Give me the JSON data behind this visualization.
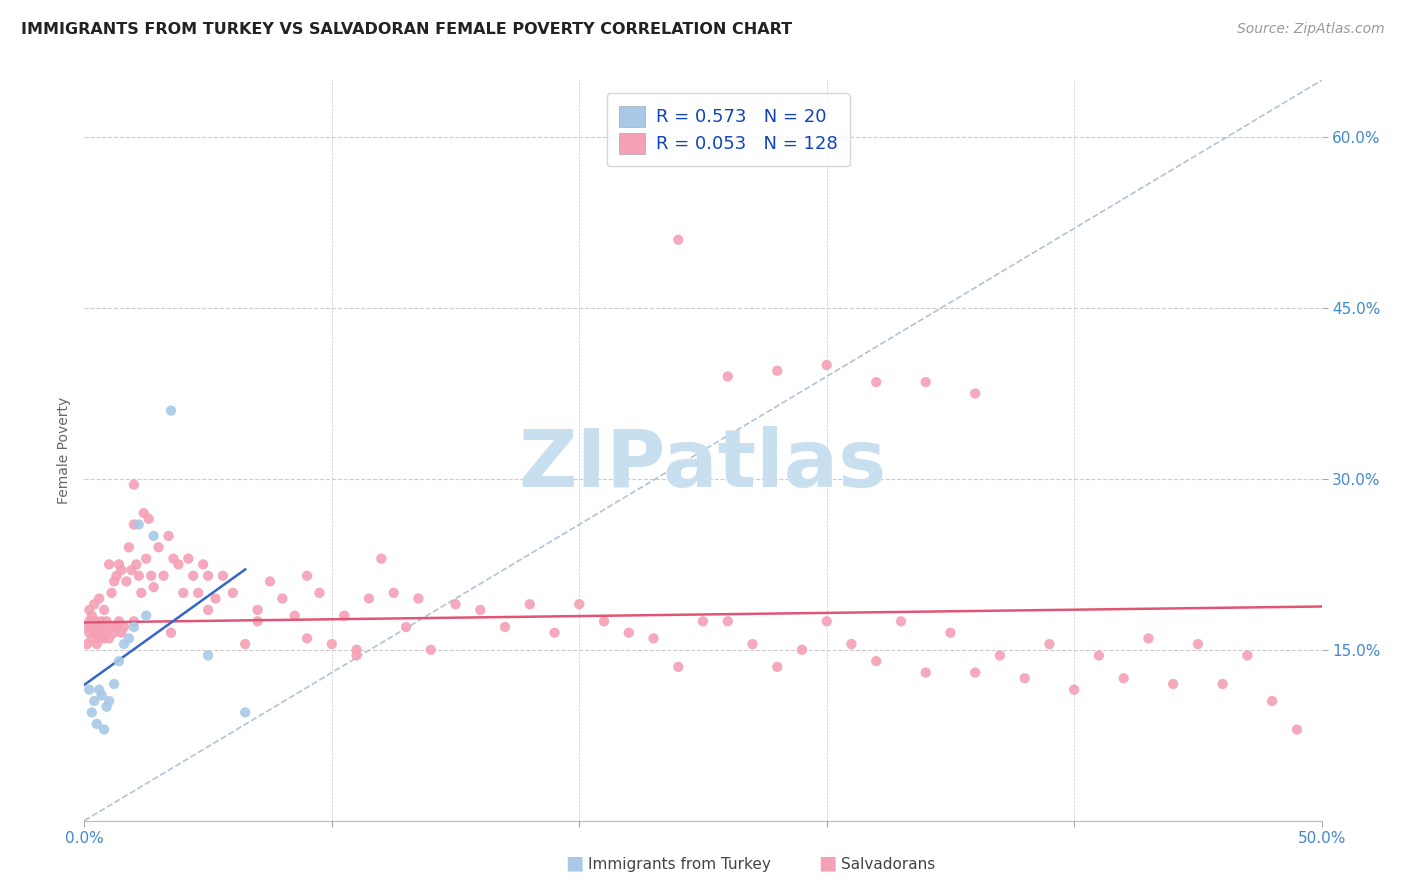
{
  "title": "IMMIGRANTS FROM TURKEY VS SALVADORAN FEMALE POVERTY CORRELATION CHART",
  "source": "Source: ZipAtlas.com",
  "ylabel": "Female Poverty",
  "xlim": [
    0.0,
    0.5
  ],
  "ylim": [
    0.0,
    0.65
  ],
  "color_blue": "#a8c8e8",
  "color_pink": "#f4a0b5",
  "trendline_blue": "#3366cc",
  "trendline_pink": "#e05575",
  "dashed_color": "#b0c4d8",
  "grid_color": "#cccccc",
  "watermark_color": "#c8dff0",
  "turkey_x": [
    0.002,
    0.003,
    0.004,
    0.005,
    0.006,
    0.007,
    0.008,
    0.009,
    0.01,
    0.012,
    0.014,
    0.016,
    0.018,
    0.02,
    0.022,
    0.025,
    0.028,
    0.035,
    0.05,
    0.065
  ],
  "turkey_y": [
    0.115,
    0.095,
    0.105,
    0.085,
    0.115,
    0.11,
    0.08,
    0.1,
    0.105,
    0.12,
    0.14,
    0.155,
    0.16,
    0.17,
    0.26,
    0.18,
    0.25,
    0.36,
    0.145,
    0.095
  ],
  "salvador_x": [
    0.001,
    0.001,
    0.002,
    0.002,
    0.002,
    0.003,
    0.003,
    0.003,
    0.004,
    0.004,
    0.004,
    0.005,
    0.005,
    0.005,
    0.006,
    0.006,
    0.006,
    0.007,
    0.007,
    0.008,
    0.008,
    0.008,
    0.009,
    0.009,
    0.01,
    0.01,
    0.011,
    0.011,
    0.012,
    0.012,
    0.013,
    0.013,
    0.014,
    0.014,
    0.015,
    0.015,
    0.016,
    0.017,
    0.018,
    0.019,
    0.02,
    0.02,
    0.021,
    0.022,
    0.023,
    0.024,
    0.025,
    0.026,
    0.027,
    0.028,
    0.03,
    0.032,
    0.034,
    0.036,
    0.038,
    0.04,
    0.042,
    0.044,
    0.046,
    0.048,
    0.05,
    0.053,
    0.056,
    0.06,
    0.065,
    0.07,
    0.075,
    0.08,
    0.085,
    0.09,
    0.095,
    0.1,
    0.105,
    0.11,
    0.115,
    0.12,
    0.125,
    0.13,
    0.135,
    0.14,
    0.15,
    0.16,
    0.17,
    0.18,
    0.19,
    0.2,
    0.21,
    0.22,
    0.23,
    0.24,
    0.25,
    0.26,
    0.27,
    0.28,
    0.29,
    0.3,
    0.31,
    0.32,
    0.33,
    0.34,
    0.35,
    0.36,
    0.37,
    0.38,
    0.39,
    0.4,
    0.41,
    0.42,
    0.43,
    0.44,
    0.45,
    0.46,
    0.47,
    0.48,
    0.49,
    0.24,
    0.26,
    0.28,
    0.3,
    0.32,
    0.34,
    0.36,
    0.02,
    0.035,
    0.05,
    0.07,
    0.09,
    0.11
  ],
  "salvador_y": [
    0.17,
    0.155,
    0.165,
    0.175,
    0.185,
    0.16,
    0.17,
    0.18,
    0.165,
    0.175,
    0.19,
    0.155,
    0.165,
    0.175,
    0.16,
    0.17,
    0.195,
    0.165,
    0.175,
    0.16,
    0.17,
    0.185,
    0.165,
    0.175,
    0.16,
    0.225,
    0.17,
    0.2,
    0.165,
    0.21,
    0.17,
    0.215,
    0.175,
    0.225,
    0.165,
    0.22,
    0.17,
    0.21,
    0.24,
    0.22,
    0.175,
    0.26,
    0.225,
    0.215,
    0.2,
    0.27,
    0.23,
    0.265,
    0.215,
    0.205,
    0.24,
    0.215,
    0.25,
    0.23,
    0.225,
    0.2,
    0.23,
    0.215,
    0.2,
    0.225,
    0.215,
    0.195,
    0.215,
    0.2,
    0.155,
    0.185,
    0.21,
    0.195,
    0.18,
    0.215,
    0.2,
    0.155,
    0.18,
    0.145,
    0.195,
    0.23,
    0.2,
    0.17,
    0.195,
    0.15,
    0.19,
    0.185,
    0.17,
    0.19,
    0.165,
    0.19,
    0.175,
    0.165,
    0.16,
    0.135,
    0.175,
    0.175,
    0.155,
    0.135,
    0.15,
    0.175,
    0.155,
    0.14,
    0.175,
    0.13,
    0.165,
    0.13,
    0.145,
    0.125,
    0.155,
    0.115,
    0.145,
    0.125,
    0.16,
    0.12,
    0.155,
    0.12,
    0.145,
    0.105,
    0.08,
    0.51,
    0.39,
    0.395,
    0.4,
    0.385,
    0.385,
    0.375,
    0.295,
    0.165,
    0.185,
    0.175,
    0.16,
    0.15
  ]
}
